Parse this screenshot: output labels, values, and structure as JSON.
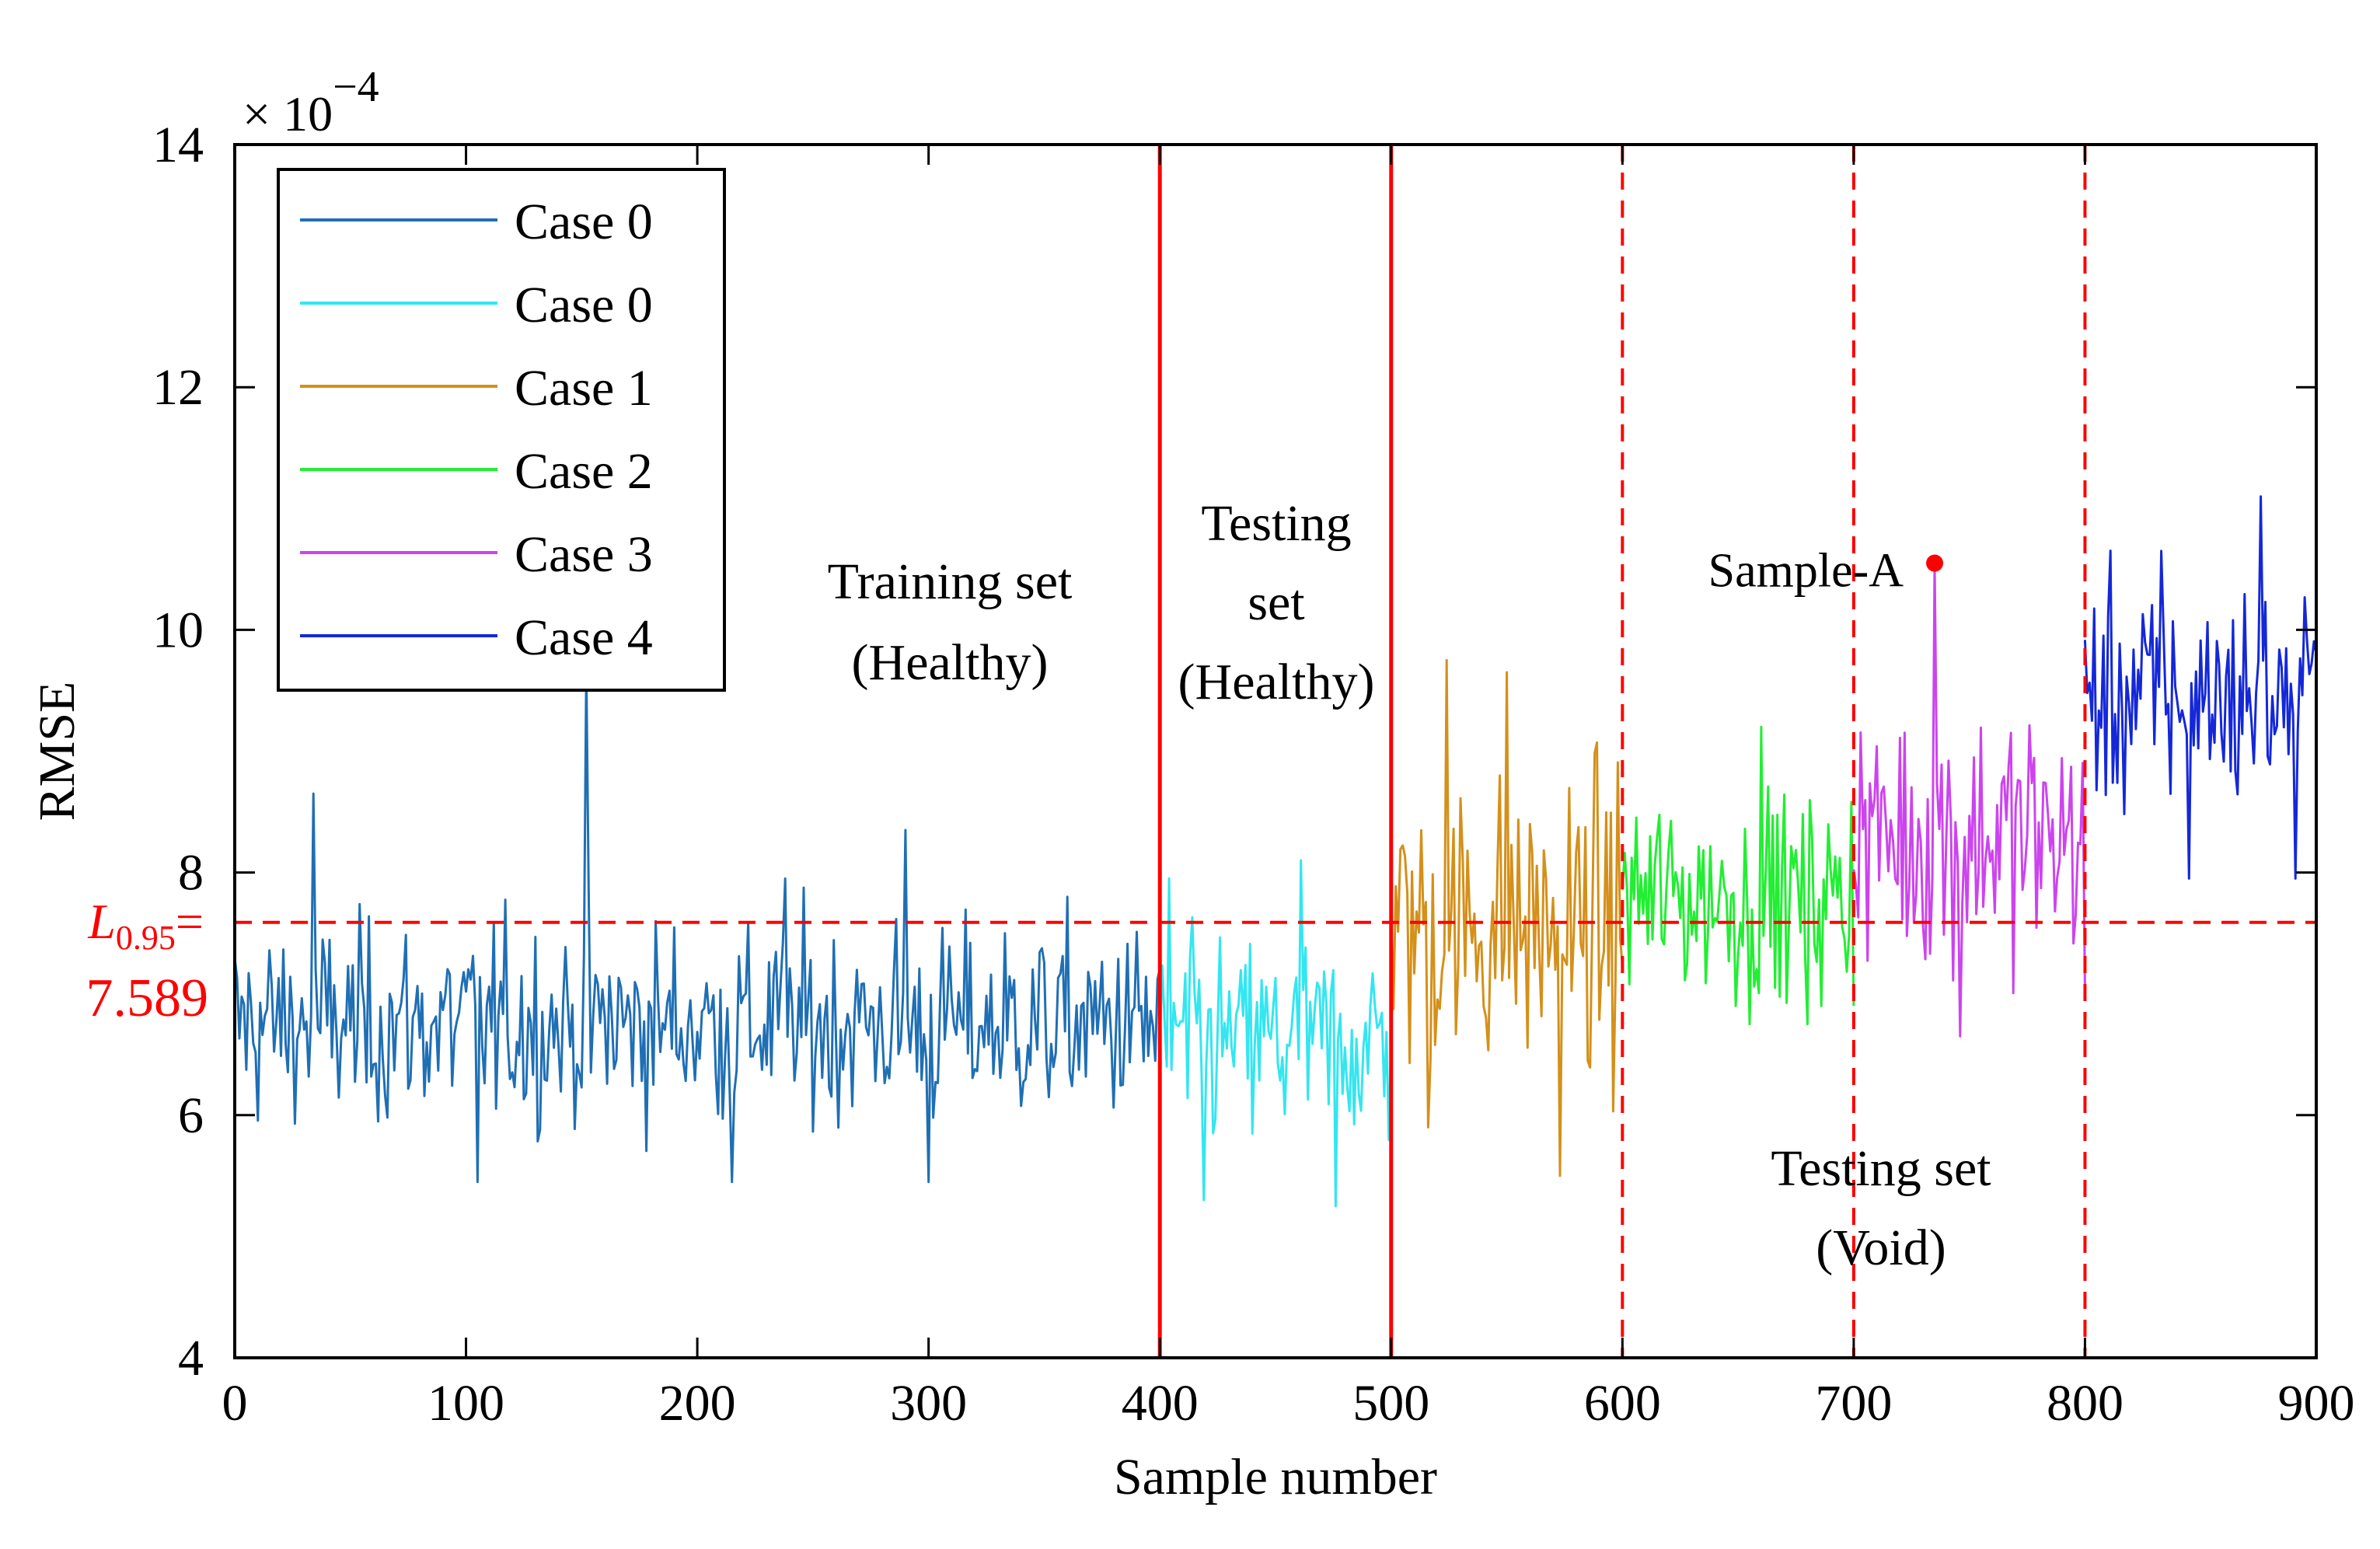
{
  "chart_data": {
    "type": "line",
    "title": "",
    "xlabel": "Sample number",
    "ylabel": "RMSE",
    "y_exponent_label": "× 10",
    "y_exponent": "−4",
    "xlim": [
      0,
      900
    ],
    "ylim": [
      4,
      14
    ],
    "x_ticks": [
      0,
      100,
      200,
      300,
      400,
      500,
      600,
      700,
      800,
      900
    ],
    "y_ticks": [
      4,
      6,
      8,
      10,
      12,
      14
    ],
    "grid": false,
    "legend_position": "top-left",
    "series": [
      {
        "name": "Case 0",
        "color": "#1f6fb4",
        "x_range": [
          0,
          400
        ],
        "mean": 6.75,
        "std": 0.48,
        "min": 5.45,
        "max": 9.7,
        "peaks": [
          [
            34,
            8.65
          ],
          [
            152,
            9.7
          ],
          [
            290,
            8.35
          ],
          [
            238,
            7.95
          ],
          [
            105,
            5.45
          ],
          [
            215,
            5.45
          ],
          [
            300,
            5.45
          ]
        ]
      },
      {
        "name": "Case 0",
        "color": "#33e6f0",
        "x_range": [
          400,
          500
        ],
        "mean": 6.6,
        "std": 0.5,
        "min": 5.25,
        "max": 8.1,
        "peaks": [
          [
            404,
            7.95
          ],
          [
            461,
            8.1
          ],
          [
            419,
            5.3
          ],
          [
            476,
            5.25
          ]
        ]
      },
      {
        "name": "Case 1",
        "color": "#d4901a",
        "x_range": [
          500,
          600
        ],
        "mean": 7.55,
        "std": 0.7,
        "min": 5.5,
        "max": 9.75,
        "peaks": [
          [
            524,
            9.75
          ],
          [
            550,
            9.65
          ],
          [
            516,
            5.9
          ],
          [
            573,
            5.5
          ]
        ]
      },
      {
        "name": "Case 2",
        "color": "#22ee33",
        "x_range": [
          600,
          700
        ],
        "mean": 7.8,
        "std": 0.5,
        "min": 6.75,
        "max": 9.2,
        "peaks": [
          [
            660,
            9.2
          ],
          [
            655,
            6.75
          ],
          [
            680,
            6.75
          ]
        ]
      },
      {
        "name": "Case 3",
        "color": "#cc44ee",
        "x_range": [
          700,
          800
        ],
        "mean": 8.3,
        "std": 0.65,
        "min": 6.65,
        "max": 10.55,
        "peaks": [
          [
            735,
            10.55
          ],
          [
            746,
            6.65
          ],
          [
            800,
            7.05
          ]
        ]
      },
      {
        "name": "Case 4",
        "color": "#1428d8",
        "x_range": [
          800,
          900
        ],
        "mean": 9.45,
        "std": 0.55,
        "min": 7.95,
        "max": 11.1,
        "peaks": [
          [
            876,
            11.1
          ],
          [
            833,
            10.65
          ],
          [
            845,
            7.95
          ],
          [
            891,
            7.95
          ]
        ]
      }
    ],
    "threshold": {
      "value": 7.589,
      "label_italic": "L",
      "label_sub": "0.95",
      "label_eq": "=",
      "label_value": "7.589",
      "color": "#ff0000"
    },
    "vertical_lines": [
      {
        "x": 400,
        "style": "solid"
      },
      {
        "x": 500,
        "style": "solid"
      },
      {
        "x": 600,
        "style": "dashed"
      },
      {
        "x": 700,
        "style": "dashed"
      },
      {
        "x": 800,
        "style": "dashed"
      }
    ],
    "marker": {
      "x": 735,
      "y": 10.55,
      "label": "Sample-A",
      "color": "#ff0000"
    },
    "annotations": [
      {
        "id": "training",
        "lines": [
          "Training set",
          "(Healthy)"
        ]
      },
      {
        "id": "testing-healthy",
        "lines": [
          "Testing",
          "set",
          "(Healthy)"
        ]
      },
      {
        "id": "testing-void",
        "lines": [
          "Testing set",
          "(Void)"
        ]
      }
    ]
  }
}
